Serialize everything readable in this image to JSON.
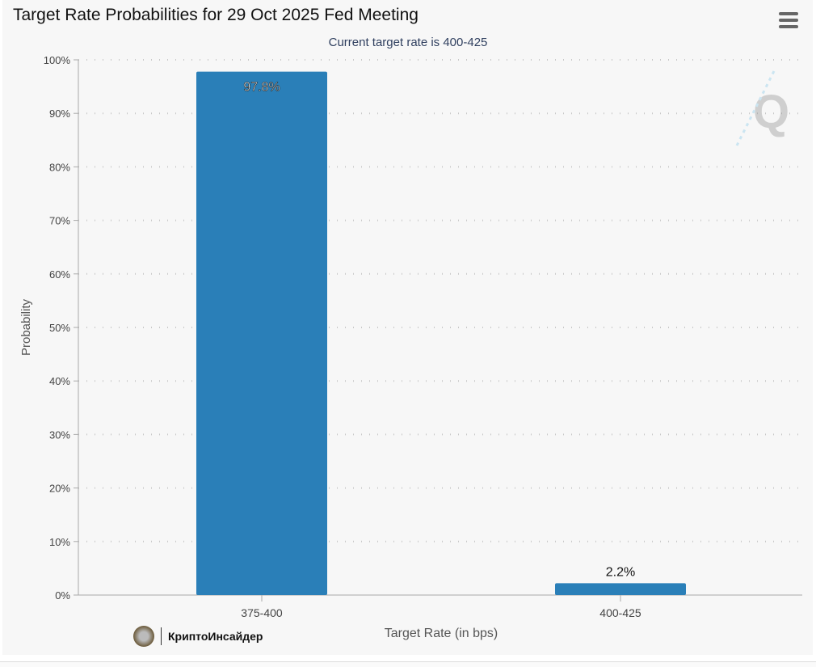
{
  "header": {
    "menu_icon": "hamburger-menu-icon"
  },
  "brand": {
    "text": "КриптоИнсайдер"
  },
  "chart_data": {
    "type": "bar",
    "title": "Target Rate Probabilities for 29 Oct 2025 Fed Meeting",
    "subtitle": "Current target rate is 400-425",
    "categories": [
      "375-400",
      "400-425"
    ],
    "values": [
      97.8,
      2.2
    ],
    "data_labels": [
      "97.8%",
      "2.2%"
    ],
    "xlabel": "Target Rate (in bps)",
    "ylabel": "Probability",
    "ylim": [
      0,
      100
    ],
    "yticks": [
      "0%",
      "10%",
      "20%",
      "30%",
      "40%",
      "50%",
      "60%",
      "70%",
      "80%",
      "90%",
      "100%"
    ],
    "grid": true,
    "bar_color": "#2a7fb8"
  }
}
